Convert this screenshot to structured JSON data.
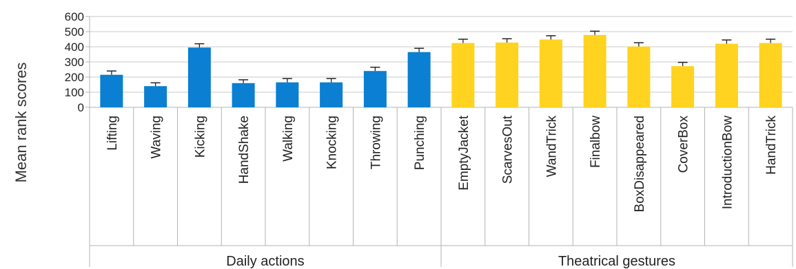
{
  "chart_data": {
    "type": "bar",
    "title": "",
    "xlabel": "",
    "ylabel": "Mean rank scores",
    "ylim": [
      0,
      600
    ],
    "yticks": [
      0,
      100,
      200,
      300,
      400,
      500,
      600
    ],
    "grid": true,
    "categories": [
      "Lifting",
      "Waving",
      "Kicking",
      "HandShake",
      "Walking",
      "Knocking",
      "Throwing",
      "Punching",
      "EmptyJacket",
      "ScarvesOut",
      "WandTrick",
      "Finalbow",
      "BoxDisappeared",
      "CoverBox",
      "IntroductionBow",
      "HandTrick"
    ],
    "values": [
      215,
      140,
      395,
      160,
      165,
      165,
      240,
      365,
      425,
      428,
      448,
      478,
      402,
      272,
      420,
      425
    ],
    "errors": [
      25,
      22,
      25,
      22,
      25,
      25,
      25,
      25,
      25,
      25,
      25,
      25,
      25,
      25,
      25,
      25
    ],
    "groups": [
      {
        "label": "Daily actions",
        "count": 8,
        "color": "#0b7fd1"
      },
      {
        "label": "Theatrical gestures",
        "count": 8,
        "color": "#ffd320"
      }
    ]
  }
}
